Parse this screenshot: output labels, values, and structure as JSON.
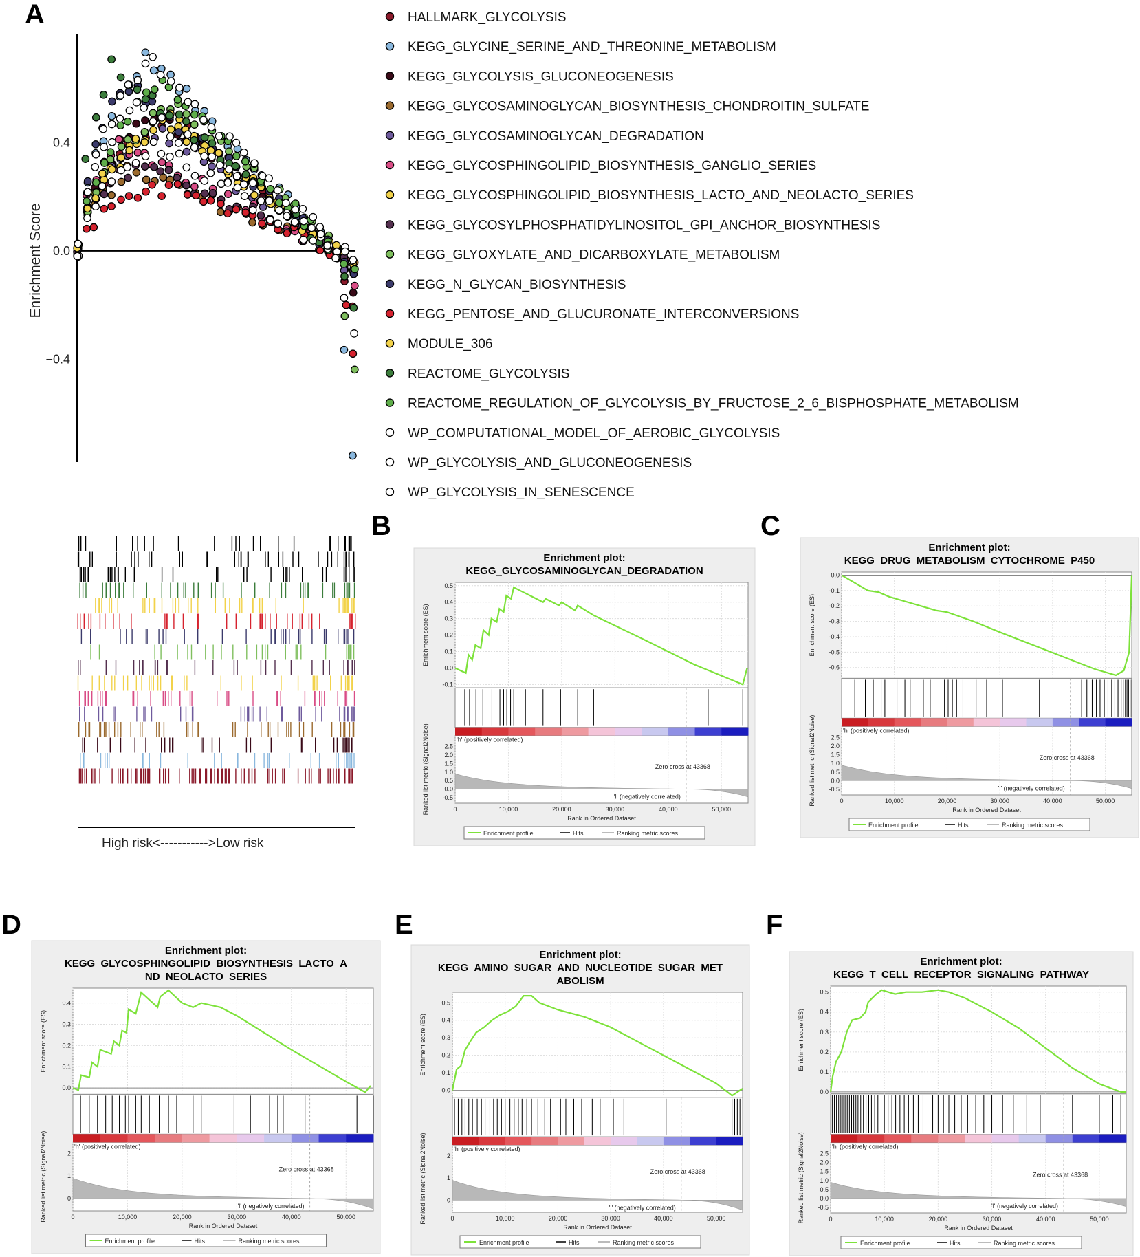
{
  "panel_labels": {
    "A": "A",
    "B": "B",
    "C": "C",
    "D": "D",
    "E": "E",
    "F": "F"
  },
  "risk_axis_label": "High risk<----------->Low risk",
  "common": {
    "es_axis": "Enrichment score (ES)",
    "metric_axis": "Ranked list metric (Signal2Noise)",
    "x_axis": "Rank in Ordered Dataset",
    "pos_label": "'h' (positively correlated)",
    "neg_label": "'l' (negatively correlated)",
    "zero_cross": "Zero cross at 43368",
    "legend": [
      "Enrichment profile",
      "Hits",
      "Ranking metric scores"
    ],
    "x_ticks": [
      "0",
      "10,000",
      "20,000",
      "30,000",
      "40,000",
      "50,000"
    ]
  },
  "chart_data": [
    {
      "id": "A",
      "type": "scatter",
      "title": "",
      "xlabel": "",
      "ylabel": "Enrichment Score",
      "y_ticks": [
        "0.4",
        "0.0",
        "−0.4"
      ],
      "ylim": [
        -0.78,
        0.8
      ],
      "series": [
        {
          "name": "HALLMARK_GLYCOLYSIS",
          "color": "#8b1a2b",
          "peak": 0.5,
          "peakx": 0.32,
          "end": -0.2
        },
        {
          "name": "KEGG_GLYCINE_SERINE_AND_THREONINE_METABOLISM",
          "color": "#8ab8de",
          "peak": 0.72,
          "peakx": 0.25,
          "end": -0.76
        },
        {
          "name": "KEGG_GLYCOLYSIS_GLUCONEOGENESIS",
          "color": "#3a0a18",
          "peak": 0.52,
          "peakx": 0.28,
          "end": -0.15
        },
        {
          "name": "KEGG_GLYCOSAMINOGLYCAN_BIOSYNTHESIS_CHONDROITIN_SULFATE",
          "color": "#9b6a2e",
          "peak": 0.3,
          "peakx": 0.2,
          "end": -0.05
        },
        {
          "name": "KEGG_GLYCOSAMINOGLYCAN_DEGRADATION",
          "color": "#6e5a9c",
          "peak": 0.45,
          "peakx": 0.28,
          "end": -0.1
        },
        {
          "name": "KEGG_GLYCOSPHINGOLIPID_BIOSYNTHESIS_GANGLIO_SERIES",
          "color": "#d94d86",
          "peak": 0.4,
          "peakx": 0.15,
          "end": -0.12
        },
        {
          "name": "KEGG_GLYCOSPHINGOLIPID_BIOSYNTHESIS_LACTO_AND_NEOLACTO_SERIES",
          "color": "#f2d24a",
          "peak": 0.48,
          "peakx": 0.3,
          "end": -0.05
        },
        {
          "name": "KEGG_GLYCOSYLPHOSPHATIDYLINOSITOL_GPI_ANCHOR_BIOSYNTHESIS",
          "color": "#54304f",
          "peak": 0.33,
          "peakx": 0.22,
          "end": -0.08
        },
        {
          "name": "KEGG_GLYOXYLATE_AND_DICARBOXYLATE_METABOLISM",
          "color": "#7fbf5e",
          "peak": 0.55,
          "peakx": 0.35,
          "end": -0.45
        },
        {
          "name": "KEGG_N_GLYCAN_BIOSYNTHESIS",
          "color": "#3b3a6b",
          "peak": 0.62,
          "peakx": 0.17,
          "end": -0.1
        },
        {
          "name": "KEGG_PENTOSE_AND_GLUCURONATE_INTERCONVERSIONS",
          "color": "#d6232f",
          "peak": 0.25,
          "peakx": 0.35,
          "end": -0.35
        },
        {
          "name": "MODULE_306",
          "color": "#f2d24a",
          "peak": 0.5,
          "peakx": 0.33,
          "end": -0.05
        },
        {
          "name": "REACTOME_GLYCOLYSIS",
          "color": "#3c7d3c",
          "peak": 0.68,
          "peakx": 0.12,
          "end": -0.22
        },
        {
          "name": "REACTOME_REGULATION_OF_GLYCOLYSIS_BY_FRUCTOSE_2_6_BISPHOSPHATE_METABOLISM",
          "color": "#5fae4a",
          "peak": 0.62,
          "peakx": 0.3,
          "end": -0.05
        },
        {
          "name": "WP_COMPUTATIONAL_MODEL_OF_AEROBIC_GLYCOLYSIS",
          "color": "#ffffff",
          "peak": 0.55,
          "peakx": 0.2,
          "end": -0.02
        },
        {
          "name": "WP_GLYCOLYSIS_AND_GLUCONEOGENESIS",
          "color": "#ffffff",
          "peak": 0.72,
          "peakx": 0.26,
          "end": -0.05
        },
        {
          "name": "WP_GLYCOLYSIS_IN_SENESCENCE",
          "color": "#ffffff",
          "peak": 0.38,
          "peakx": 0.28,
          "end": -0.3
        }
      ]
    },
    {
      "id": "B",
      "type": "line",
      "title": [
        "Enrichment plot:",
        "KEGG_GLYCOSAMINOGLYCAN_DEGRADATION"
      ],
      "xlabel": "Rank in Ordered Dataset",
      "ylabel": "Enrichment score (ES)",
      "y_ticks": [
        "0.5",
        "0.4",
        "0.3",
        "0.2",
        "0.1",
        "0.0",
        "-0.1"
      ],
      "ylim": [
        -0.12,
        0.52
      ],
      "metric_ticks": [
        "2.5",
        "2.0",
        "1.5",
        "1.0",
        "0.5",
        "0.0",
        "-0.5"
      ],
      "xlim": [
        0,
        55000
      ],
      "profile": [
        [
          0,
          0
        ],
        [
          2000,
          -0.03
        ],
        [
          2500,
          0.08
        ],
        [
          3200,
          0.05
        ],
        [
          3800,
          0.14
        ],
        [
          4800,
          0.12
        ],
        [
          5300,
          0.23
        ],
        [
          6300,
          0.2
        ],
        [
          6800,
          0.3
        ],
        [
          7800,
          0.28
        ],
        [
          8300,
          0.36
        ],
        [
          9100,
          0.34
        ],
        [
          9600,
          0.44
        ],
        [
          10500,
          0.42
        ],
        [
          11000,
          0.49
        ],
        [
          16500,
          0.4
        ],
        [
          17000,
          0.42
        ],
        [
          19500,
          0.38
        ],
        [
          20000,
          0.4
        ],
        [
          22500,
          0.35
        ],
        [
          23000,
          0.38
        ],
        [
          26000,
          0.32
        ],
        [
          35000,
          0.18
        ],
        [
          45000,
          0.02
        ],
        [
          54000,
          -0.1
        ],
        [
          54800,
          0.0
        ]
      ],
      "hits": [
        1800,
        2700,
        3900,
        5200,
        6900,
        8400,
        9100,
        9700,
        10400,
        11000,
        13200,
        16500,
        19800,
        23000,
        26000,
        47500,
        54000
      ]
    },
    {
      "id": "C",
      "type": "line",
      "title": [
        "Enrichment plot:",
        "KEGG_DRUG_METABOLISM_CYTOCHROME_P450"
      ],
      "xlabel": "Rank in Ordered Dataset",
      "ylabel": "Enrichment score (ES)",
      "y_ticks": [
        "0.0",
        "-0.1",
        "-0.2",
        "-0.3",
        "-0.4",
        "-0.5",
        "-0.6"
      ],
      "ylim": [
        -0.67,
        0.02
      ],
      "metric_ticks": [
        "2.5",
        "2.0",
        "1.5",
        "1.0",
        "0.5",
        "0.0",
        "-0.5"
      ],
      "xlim": [
        0,
        55000
      ],
      "profile": [
        [
          0,
          0
        ],
        [
          3000,
          -0.06
        ],
        [
          5000,
          -0.1
        ],
        [
          7000,
          -0.11
        ],
        [
          9000,
          -0.14
        ],
        [
          12000,
          -0.17
        ],
        [
          15000,
          -0.2
        ],
        [
          18000,
          -0.23
        ],
        [
          20000,
          -0.24
        ],
        [
          25000,
          -0.3
        ],
        [
          30000,
          -0.37
        ],
        [
          36000,
          -0.45
        ],
        [
          42000,
          -0.53
        ],
        [
          48000,
          -0.61
        ],
        [
          52000,
          -0.65
        ],
        [
          53500,
          -0.62
        ],
        [
          54500,
          -0.5
        ],
        [
          55000,
          0.0
        ]
      ],
      "hits": [
        2500,
        4500,
        6000,
        7500,
        8200,
        10500,
        12000,
        13000,
        15500,
        16800,
        19500,
        20200,
        21000,
        21800,
        23000,
        25500,
        27500,
        30500,
        37500,
        45500,
        46500,
        47500,
        48300,
        49000,
        49800,
        50500,
        51200,
        51800,
        52400,
        53000,
        53400,
        53800,
        54100,
        54400,
        54700,
        55000
      ]
    },
    {
      "id": "D",
      "type": "line",
      "title": [
        "Enrichment plot:",
        "KEGG_GLYCOSPHINGOLIPID_BIOSYNTHESIS_LACTO_A",
        "ND_NEOLACTO_SERIES"
      ],
      "xlabel": "Rank in Ordered Dataset",
      "ylabel": "Enrichment score (ES)",
      "y_ticks": [
        "0.4",
        "0.3",
        "0.2",
        "0.1",
        "0.0"
      ],
      "ylim": [
        -0.03,
        0.47
      ],
      "metric_ticks": [
        "2",
        "1",
        "0"
      ],
      "xlim": [
        0,
        55000
      ],
      "profile": [
        [
          0,
          0
        ],
        [
          1000,
          -0.01
        ],
        [
          1500,
          0.06
        ],
        [
          3000,
          0.05
        ],
        [
          3500,
          0.12
        ],
        [
          4500,
          0.1
        ],
        [
          5000,
          0.18
        ],
        [
          7000,
          0.16
        ],
        [
          7500,
          0.22
        ],
        [
          8500,
          0.2
        ],
        [
          9000,
          0.27
        ],
        [
          9800,
          0.26
        ],
        [
          10200,
          0.37
        ],
        [
          11500,
          0.35
        ],
        [
          12500,
          0.45
        ],
        [
          15500,
          0.38
        ],
        [
          16000,
          0.43
        ],
        [
          17500,
          0.46
        ],
        [
          20000,
          0.4
        ],
        [
          22000,
          0.38
        ],
        [
          23500,
          0.4
        ],
        [
          27000,
          0.38
        ],
        [
          30000,
          0.34
        ],
        [
          40000,
          0.18
        ],
        [
          50000,
          0.03
        ],
        [
          53500,
          -0.02
        ],
        [
          54500,
          0.01
        ]
      ],
      "hits": [
        1400,
        3000,
        4500,
        6000,
        7200,
        8500,
        9600,
        10200,
        11500,
        12500,
        14000,
        15800,
        17500,
        19000,
        22000,
        23500,
        29500,
        32500,
        36000,
        37500,
        38500,
        42500,
        52000,
        55000
      ]
    },
    {
      "id": "E",
      "type": "line",
      "title": [
        "Enrichment plot:",
        "KEGG_AMINO_SUGAR_AND_NUCLEOTIDE_SUGAR_MET",
        "ABOLISM"
      ],
      "xlabel": "Rank in Ordered Dataset",
      "ylabel": "Enrichment score (ES)",
      "y_ticks": [
        "0.5",
        "0.4",
        "0.3",
        "0.2",
        "0.1",
        "0.0"
      ],
      "ylim": [
        -0.04,
        0.56
      ],
      "metric_ticks": [
        "2",
        "1",
        "0"
      ],
      "xlim": [
        0,
        55000
      ],
      "profile": [
        [
          0,
          0.0
        ],
        [
          800,
          0.12
        ],
        [
          1600,
          0.14
        ],
        [
          2400,
          0.23
        ],
        [
          3400,
          0.28
        ],
        [
          4500,
          0.33
        ],
        [
          6000,
          0.36
        ],
        [
          7500,
          0.4
        ],
        [
          9000,
          0.43
        ],
        [
          10500,
          0.45
        ],
        [
          12000,
          0.48
        ],
        [
          13500,
          0.54
        ],
        [
          15000,
          0.54
        ],
        [
          16500,
          0.5
        ],
        [
          20000,
          0.46
        ],
        [
          25000,
          0.42
        ],
        [
          30000,
          0.36
        ],
        [
          35000,
          0.28
        ],
        [
          40000,
          0.2
        ],
        [
          45000,
          0.12
        ],
        [
          50000,
          0.04
        ],
        [
          53000,
          -0.03
        ],
        [
          54500,
          0.0
        ],
        [
          55000,
          0.01
        ]
      ],
      "hits": [
        400,
        1100,
        1800,
        2400,
        3100,
        3800,
        4700,
        5500,
        6200,
        7100,
        7800,
        8500,
        9300,
        10000,
        10900,
        11700,
        12500,
        13200,
        14100,
        15000,
        16200,
        17500,
        18600,
        20500,
        21500,
        23000,
        24500,
        26500,
        28000,
        30500,
        32500,
        40500,
        53000,
        53500,
        54000,
        54500
      ]
    },
    {
      "id": "F",
      "type": "line",
      "title": [
        "Enrichment plot:",
        "KEGG_T_CELL_RECEPTOR_SIGNALING_PATHWAY"
      ],
      "xlabel": "Rank in Ordered Dataset",
      "ylabel": "Enrichment score (ES)",
      "y_ticks": [
        "0.5",
        "0.4",
        "0.3",
        "0.2",
        "0.1",
        "0.0"
      ],
      "ylim": [
        -0.01,
        0.53
      ],
      "metric_ticks": [
        "2.5",
        "2.0",
        "1.5",
        "1.0",
        "0.5",
        "0.0",
        "-0.5"
      ],
      "xlim": [
        0,
        55000
      ],
      "profile": [
        [
          0,
          0
        ],
        [
          400,
          0.08
        ],
        [
          1000,
          0.15
        ],
        [
          2000,
          0.2
        ],
        [
          3000,
          0.3
        ],
        [
          4000,
          0.36
        ],
        [
          5500,
          0.37
        ],
        [
          6500,
          0.4
        ],
        [
          7000,
          0.45
        ],
        [
          8500,
          0.49
        ],
        [
          9500,
          0.51
        ],
        [
          12000,
          0.49
        ],
        [
          14000,
          0.5
        ],
        [
          17000,
          0.5
        ],
        [
          20000,
          0.51
        ],
        [
          22000,
          0.5
        ],
        [
          25000,
          0.47
        ],
        [
          30000,
          0.4
        ],
        [
          35000,
          0.32
        ],
        [
          40000,
          0.22
        ],
        [
          45000,
          0.12
        ],
        [
          50000,
          0.04
        ],
        [
          54000,
          0.0
        ],
        [
          55000,
          0.0
        ]
      ],
      "hits": [
        300,
        700,
        1100,
        1500,
        1900,
        2300,
        2700,
        3100,
        3500,
        3900,
        4300,
        4700,
        5100,
        5600,
        6100,
        6600,
        7100,
        7600,
        8200,
        8800,
        9400,
        10000,
        10700,
        11400,
        12100,
        12900,
        13700,
        14500,
        15400,
        16300,
        17200,
        18100,
        19000,
        20000,
        21000,
        22000,
        23100,
        24300,
        25500,
        27000,
        28500,
        30000,
        32000,
        34000,
        36500,
        39000,
        45000,
        50000,
        52500,
        54000
      ]
    }
  ]
}
